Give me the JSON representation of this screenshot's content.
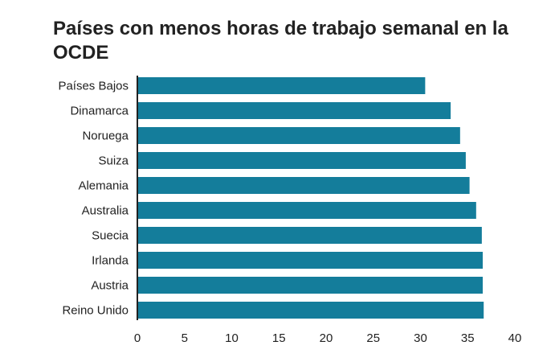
{
  "chart_data": {
    "type": "bar",
    "orientation": "horizontal",
    "title": "Países con menos horas de trabajo semanal en la OCDE",
    "xlabel": "",
    "ylabel": "",
    "categories": [
      "Países Bajos",
      "Dinamarca",
      "Noruega",
      "Suiza",
      "Alemania",
      "Australia",
      "Suecia",
      "Irlanda",
      "Austria",
      "Reino Unido"
    ],
    "values": [
      30.5,
      33.2,
      34.2,
      34.8,
      35.2,
      35.9,
      36.5,
      36.6,
      36.6,
      36.7
    ],
    "xlim": [
      0,
      40
    ],
    "xticks": [
      "0",
      "5",
      "10",
      "15",
      "20",
      "25",
      "30",
      "35",
      "40"
    ],
    "grid": false,
    "legend": "none",
    "bar_color": "#147d9b"
  }
}
